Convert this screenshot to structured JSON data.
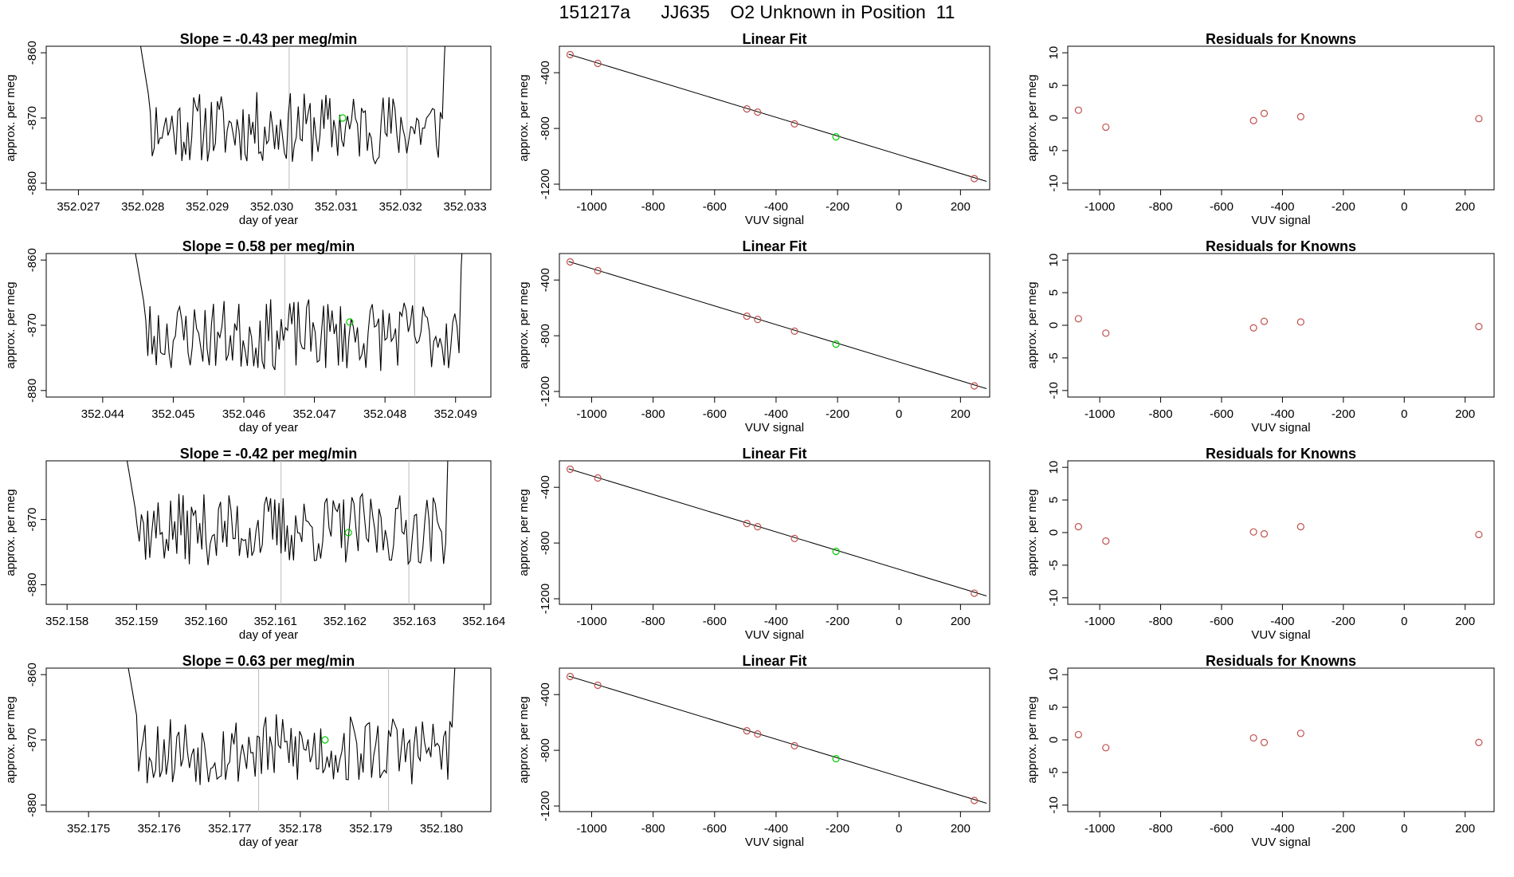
{
  "page": {
    "title": "151217a      JJ635    O2 Unknown in Position  11"
  },
  "colors": {
    "series_line": "#000000",
    "known_points": "#c0504d",
    "unknown_point": "#00cc00",
    "window_lines": "#bbbbbb"
  },
  "chart_data": [
    {
      "type": "line",
      "row": 0,
      "col": 0,
      "title": "Slope =  -0.43  per meg/min",
      "xlabel": "day of year",
      "ylabel": "approx. per meg",
      "xlim": [
        352.0265,
        352.0334
      ],
      "ylim": [
        -881,
        -859
      ],
      "xticks": [
        352.027,
        352.028,
        352.029,
        352.03,
        352.031,
        352.032,
        352.033
      ],
      "xtick_labels": [
        "352.027",
        "352.028",
        "352.029",
        "352.030",
        "352.031",
        "352.032",
        "352.033"
      ],
      "yticks": [
        -860,
        -870,
        -880
      ],
      "ytick_labels": [
        "-860",
        "-870",
        "-880"
      ],
      "vlines": [
        352.03027,
        352.0321
      ],
      "series_start": 352.0279,
      "series_end": 352.0328,
      "series_seed": 11,
      "unknown_point": {
        "x": 352.0311,
        "y": -870
      }
    },
    {
      "type": "scatter",
      "row": 0,
      "col": 1,
      "title": "Linear Fit",
      "xlabel": "VUV signal",
      "ylabel": "approx. per meg",
      "xlim": [
        -1105,
        295
      ],
      "ylim": [
        -1240,
        -210
      ],
      "xticks": [
        -1000,
        -800,
        -600,
        -400,
        -200,
        0,
        200
      ],
      "xtick_labels": [
        "-1000",
        "-800",
        "-600",
        "-400",
        "-200",
        "0",
        "200"
      ],
      "yticks": [
        -400,
        -800,
        -1200
      ],
      "ytick_labels": [
        "-400",
        "-800",
        "-1200"
      ],
      "fit_line": {
        "x": [
          -1075,
          285
        ],
        "y": [
          -267,
          -1180
        ]
      },
      "known_points": {
        "x": [
          -1070,
          -980,
          -495,
          -460,
          -340,
          245
        ],
        "y": [
          -270,
          -333,
          -660,
          -683,
          -767,
          -1160
        ]
      },
      "unknown_point": {
        "x": -205,
        "y": -860
      }
    },
    {
      "type": "scatter",
      "row": 0,
      "col": 2,
      "title": "Residuals for Knowns",
      "xlabel": "VUV signal",
      "ylabel": "approx. per meg",
      "xlim": [
        -1105,
        295
      ],
      "ylim": [
        -11,
        11
      ],
      "xticks": [
        -1000,
        -800,
        -600,
        -400,
        -200,
        0,
        200
      ],
      "xtick_labels": [
        "-1000",
        "-800",
        "-600",
        "-400",
        "-200",
        "0",
        "200"
      ],
      "yticks": [
        10,
        5,
        0,
        -5,
        -10
      ],
      "ytick_labels": [
        "10",
        "5",
        "0",
        "-5",
        "-10"
      ],
      "known_points": {
        "x": [
          -1070,
          -980,
          -495,
          -460,
          -340,
          245
        ],
        "y": [
          1.2,
          -1.4,
          -0.4,
          0.7,
          0.2,
          -0.1
        ]
      }
    },
    {
      "type": "line",
      "row": 1,
      "col": 0,
      "title": "Slope =  0.58  per meg/min",
      "xlabel": "day of year",
      "ylabel": "approx. per meg",
      "xlim": [
        352.0432,
        352.0495
      ],
      "ylim": [
        -881,
        -859
      ],
      "xticks": [
        352.044,
        352.045,
        352.046,
        352.047,
        352.048,
        352.049
      ],
      "xtick_labels": [
        "352.044",
        "352.045",
        "352.046",
        "352.047",
        "352.048",
        "352.049"
      ],
      "yticks": [
        -860,
        -870,
        -880
      ],
      "ytick_labels": [
        "-860",
        "-870",
        "-880"
      ],
      "vlines": [
        352.04658,
        352.04842
      ],
      "series_start": 352.0444,
      "series_end": 352.0492,
      "series_seed": 23,
      "unknown_point": {
        "x": 352.0475,
        "y": -869.5
      }
    },
    {
      "type": "scatter",
      "row": 1,
      "col": 1,
      "title": "Linear Fit",
      "xlabel": "VUV signal",
      "ylabel": "approx. per meg",
      "xlim": [
        -1105,
        295
      ],
      "ylim": [
        -1240,
        -210
      ],
      "xticks": [
        -1000,
        -800,
        -600,
        -400,
        -200,
        0,
        200
      ],
      "xtick_labels": [
        "-1000",
        "-800",
        "-600",
        "-400",
        "-200",
        "0",
        "200"
      ],
      "yticks": [
        -400,
        -800,
        -1200
      ],
      "ytick_labels": [
        "-400",
        "-800",
        "-1200"
      ],
      "fit_line": {
        "x": [
          -1075,
          285
        ],
        "y": [
          -267,
          -1180
        ]
      },
      "known_points": {
        "x": [
          -1070,
          -980,
          -495,
          -460,
          -340,
          245
        ],
        "y": [
          -270,
          -333,
          -660,
          -683,
          -767,
          -1160
        ]
      },
      "unknown_point": {
        "x": -205,
        "y": -860
      }
    },
    {
      "type": "scatter",
      "row": 1,
      "col": 2,
      "title": "Residuals for Knowns",
      "xlabel": "VUV signal",
      "ylabel": "approx. per meg",
      "xlim": [
        -1105,
        295
      ],
      "ylim": [
        -11,
        11
      ],
      "xticks": [
        -1000,
        -800,
        -600,
        -400,
        -200,
        0,
        200
      ],
      "xtick_labels": [
        "-1000",
        "-800",
        "-600",
        "-400",
        "-200",
        "0",
        "200"
      ],
      "yticks": [
        10,
        5,
        0,
        -5,
        -10
      ],
      "ytick_labels": [
        "10",
        "5",
        "0",
        "-5",
        "-10"
      ],
      "known_points": {
        "x": [
          -1070,
          -980,
          -495,
          -460,
          -340,
          245
        ],
        "y": [
          1.0,
          -1.2,
          -0.4,
          0.6,
          0.5,
          -0.2
        ]
      }
    },
    {
      "type": "line",
      "row": 2,
      "col": 0,
      "title": "Slope =  -0.42  per meg/min",
      "xlabel": "day of year",
      "ylabel": "approx. per meg",
      "xlim": [
        352.1577,
        352.1641
      ],
      "ylim": [
        -883,
        -861
      ],
      "xticks": [
        352.158,
        352.159,
        352.16,
        352.161,
        352.162,
        352.163,
        352.164
      ],
      "xtick_labels": [
        "352.158",
        "352.159",
        "352.160",
        "352.161",
        "352.162",
        "352.163",
        "352.164"
      ],
      "yticks": [
        -870,
        -880
      ],
      "ytick_labels": [
        "-870",
        "-880"
      ],
      "vlines": [
        352.16108,
        352.16292
      ],
      "series_start": 352.1588,
      "series_end": 352.1636,
      "series_seed": 37,
      "unknown_point": {
        "x": 352.16205,
        "y": -872
      }
    },
    {
      "type": "scatter",
      "row": 2,
      "col": 1,
      "title": "Linear Fit",
      "xlabel": "VUV signal",
      "ylabel": "approx. per meg",
      "xlim": [
        -1105,
        295
      ],
      "ylim": [
        -1240,
        -210
      ],
      "xticks": [
        -1000,
        -800,
        -600,
        -400,
        -200,
        0,
        200
      ],
      "xtick_labels": [
        "-1000",
        "-800",
        "-600",
        "-400",
        "-200",
        "0",
        "200"
      ],
      "yticks": [
        -400,
        -800,
        -1200
      ],
      "ytick_labels": [
        "-400",
        "-800",
        "-1200"
      ],
      "fit_line": {
        "x": [
          -1075,
          285
        ],
        "y": [
          -267,
          -1180
        ]
      },
      "known_points": {
        "x": [
          -1070,
          -980,
          -495,
          -460,
          -340,
          245
        ],
        "y": [
          -270,
          -333,
          -660,
          -683,
          -767,
          -1160
        ]
      },
      "unknown_point": {
        "x": -205,
        "y": -860
      }
    },
    {
      "type": "scatter",
      "row": 2,
      "col": 2,
      "title": "Residuals for Knowns",
      "xlabel": "VUV signal",
      "ylabel": "approx. per meg",
      "xlim": [
        -1105,
        295
      ],
      "ylim": [
        -11,
        11
      ],
      "xticks": [
        -1000,
        -800,
        -600,
        -400,
        -200,
        0,
        200
      ],
      "xtick_labels": [
        "-1000",
        "-800",
        "-600",
        "-400",
        "-200",
        "0",
        "200"
      ],
      "yticks": [
        10,
        5,
        0,
        -5,
        -10
      ],
      "ytick_labels": [
        "10",
        "5",
        "0",
        "-5",
        "-10"
      ],
      "known_points": {
        "x": [
          -1070,
          -980,
          -495,
          -460,
          -340,
          245
        ],
        "y": [
          0.9,
          -1.3,
          0.1,
          -0.2,
          0.9,
          -0.3
        ]
      }
    },
    {
      "type": "line",
      "row": 3,
      "col": 0,
      "title": "Slope =  0.63  per meg/min",
      "xlabel": "day of year",
      "ylabel": "approx. per meg",
      "xlim": [
        352.1744,
        352.1807
      ],
      "ylim": [
        -881,
        -859
      ],
      "xticks": [
        352.175,
        352.176,
        352.177,
        352.178,
        352.179,
        352.18
      ],
      "xtick_labels": [
        "352.175",
        "352.176",
        "352.177",
        "352.178",
        "352.179",
        "352.180"
      ],
      "yticks": [
        -860,
        -870,
        -880
      ],
      "ytick_labels": [
        "-860",
        "-870",
        "-880"
      ],
      "vlines": [
        352.17741,
        352.17925
      ],
      "series_start": 352.1755,
      "series_end": 352.1803,
      "series_seed": 53,
      "unknown_point": {
        "x": 352.17835,
        "y": -870
      }
    },
    {
      "type": "scatter",
      "row": 3,
      "col": 1,
      "title": "Linear Fit",
      "xlabel": "VUV signal",
      "ylabel": "approx. per meg",
      "xlim": [
        -1105,
        295
      ],
      "ylim": [
        -1240,
        -210
      ],
      "xticks": [
        -1000,
        -800,
        -600,
        -400,
        -200,
        0,
        200
      ],
      "xtick_labels": [
        "-1000",
        "-800",
        "-600",
        "-400",
        "-200",
        "0",
        "200"
      ],
      "yticks": [
        -400,
        -800,
        -1200
      ],
      "ytick_labels": [
        "-400",
        "-800",
        "-1200"
      ],
      "fit_line": {
        "x": [
          -1075,
          285
        ],
        "y": [
          -267,
          -1180
        ]
      },
      "known_points": {
        "x": [
          -1070,
          -980,
          -495,
          -460,
          -340,
          245
        ],
        "y": [
          -270,
          -333,
          -660,
          -683,
          -767,
          -1160
        ]
      },
      "unknown_point": {
        "x": -205,
        "y": -860
      }
    },
    {
      "type": "scatter",
      "row": 3,
      "col": 2,
      "title": "Residuals for Knowns",
      "xlabel": "VUV signal",
      "ylabel": "approx. per meg",
      "xlim": [
        -1105,
        295
      ],
      "ylim": [
        -11,
        11
      ],
      "xticks": [
        -1000,
        -800,
        -600,
        -400,
        -200,
        0,
        200
      ],
      "xtick_labels": [
        "-1000",
        "-800",
        "-600",
        "-400",
        "-200",
        "0",
        "200"
      ],
      "yticks": [
        10,
        5,
        0,
        -5,
        -10
      ],
      "ytick_labels": [
        "10",
        "5",
        "0",
        "-5",
        "-10"
      ],
      "known_points": {
        "x": [
          -1070,
          -980,
          -495,
          -460,
          -340,
          245
        ],
        "y": [
          0.8,
          -1.2,
          0.3,
          -0.4,
          1.0,
          -0.4
        ]
      }
    }
  ]
}
